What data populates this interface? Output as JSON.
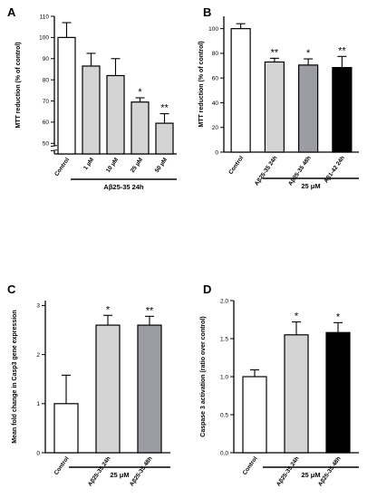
{
  "chart_data": [
    {
      "panel": "A",
      "type": "bar",
      "ylabel": "MTT reduction (% of control)",
      "ylim": [
        45,
        110
      ],
      "yticks": [
        "50",
        "60",
        "70",
        "80",
        "90",
        "100",
        "110"
      ],
      "axis_break": true,
      "categories": [
        "Control",
        "1 µM",
        "10 µM",
        "25 µM",
        "50 µM"
      ],
      "values": [
        100,
        86.5,
        82,
        69.5,
        59.5
      ],
      "errors": [
        7,
        6,
        8,
        2,
        4.5
      ],
      "colors": [
        "#ffffff",
        "#d4d4d4",
        "#d4d4d4",
        "#d4d4d4",
        "#d4d4d4"
      ],
      "significance": [
        "",
        "",
        "",
        "*",
        "**"
      ],
      "group_label": "Aβ25-35 24h"
    },
    {
      "panel": "B",
      "type": "bar",
      "ylabel": "MTT reduction (% of control)",
      "ylim": [
        0,
        110
      ],
      "yticks": [
        "0",
        "20",
        "40",
        "60",
        "80",
        "100"
      ],
      "categories": [
        "Control",
        "Aβ25-35 24h",
        "Aβ25-35 48h",
        "Aβ1-42 24h"
      ],
      "values": [
        100,
        73,
        70.5,
        68.5
      ],
      "errors": [
        4,
        3,
        5,
        9
      ],
      "colors": [
        "#ffffff",
        "#d4d4d4",
        "#9c9ca4",
        "#000000"
      ],
      "significance": [
        "",
        "**",
        "*",
        "**"
      ],
      "group_label": "25 μM"
    },
    {
      "panel": "C",
      "type": "bar",
      "ylabel": "Mean fold change in Casp3 gene expression",
      "ylim": [
        0,
        3.1
      ],
      "yticks": [
        "0",
        "1",
        "2",
        "3"
      ],
      "categories": [
        "Control",
        "Aβ25-35 24h",
        "Aβ25-35 48h"
      ],
      "values": [
        1.0,
        2.6,
        2.6
      ],
      "errors": [
        0.58,
        0.2,
        0.18
      ],
      "colors": [
        "#ffffff",
        "#d4d4d4",
        "#9c9ca4"
      ],
      "significance": [
        "",
        "*",
        "**"
      ],
      "group_label": "25 μM"
    },
    {
      "panel": "D",
      "type": "bar",
      "ylabel": "Caspase 3 activation (ratio over control)",
      "ylim": [
        0,
        2.0
      ],
      "yticks": [
        "0.0",
        "0.5",
        "1.0",
        "1.5",
        "2.0"
      ],
      "categories": [
        "Control",
        "Aβ25-35 24h",
        "Aβ25-35 48h"
      ],
      "values": [
        1.0,
        1.55,
        1.58
      ],
      "errors": [
        0.09,
        0.17,
        0.13
      ],
      "colors": [
        "#ffffff",
        "#d4d4d4",
        "#000000"
      ],
      "significance": [
        "",
        "*",
        "*"
      ],
      "group_label": "25 μM"
    }
  ]
}
